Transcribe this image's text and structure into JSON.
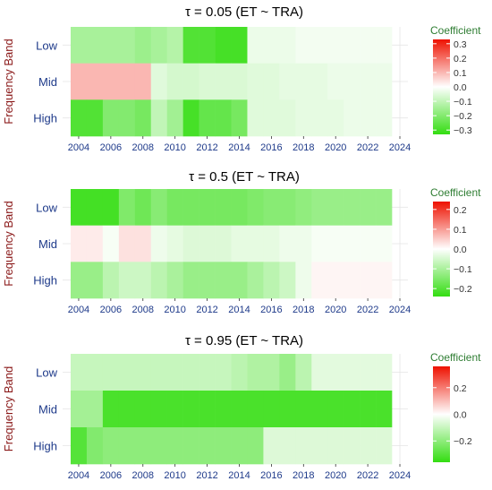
{
  "colors": {
    "negative_end": "#33dd11",
    "zero": "#ffffff",
    "positive_end": "#ee1100",
    "title": "#000000",
    "axis_label": "#8b1a1a",
    "tick_label": "#1e3a8a",
    "legend_title": "#2e7d32"
  },
  "chart_data": [
    {
      "type": "heatmap",
      "title": "τ = 0.05  (ET ~ TRA)",
      "ylabel": "Frequency Band",
      "xlabel": "",
      "legend_title": "Coefficient",
      "legend_position": "right",
      "legend_ticks": [
        "0.3",
        "0.2",
        "0.1",
        "0.0",
        "−0.1",
        "−0.2",
        "−0.3"
      ],
      "legend_tick_values": [
        0.3,
        0.2,
        0.1,
        0.0,
        -0.1,
        -0.2,
        -0.3
      ],
      "color_limits": [
        -0.33,
        0.33
      ],
      "x_ticks": [
        "2004",
        "2006",
        "2008",
        "2010",
        "2012",
        "2014",
        "2016",
        "2018",
        "2020",
        "2022",
        "2024"
      ],
      "xlim": [
        2003,
        2024.5
      ],
      "x": [
        2004,
        2005,
        2006,
        2007,
        2008,
        2009,
        2010,
        2011,
        2012,
        2013,
        2014,
        2015,
        2016,
        2017,
        2018,
        2019,
        2020,
        2021,
        2022,
        2023
      ],
      "bands": [
        "Low",
        "Mid",
        "High"
      ],
      "values": {
        "Low": [
          -0.14,
          -0.14,
          -0.14,
          -0.14,
          -0.16,
          -0.14,
          -0.12,
          -0.28,
          -0.28,
          -0.3,
          -0.3,
          -0.03,
          -0.03,
          -0.03,
          -0.02,
          -0.02,
          -0.02,
          -0.02,
          -0.02,
          -0.02
        ],
        "Mid": [
          0.1,
          0.1,
          0.1,
          0.1,
          0.1,
          -0.05,
          -0.07,
          -0.07,
          -0.06,
          -0.06,
          -0.06,
          -0.05,
          -0.05,
          -0.04,
          -0.04,
          -0.04,
          -0.03,
          -0.03,
          -0.03,
          -0.03
        ],
        "High": [
          -0.28,
          -0.28,
          -0.2,
          -0.2,
          -0.22,
          -0.1,
          -0.15,
          -0.3,
          -0.25,
          -0.25,
          -0.22,
          -0.05,
          -0.05,
          -0.05,
          -0.04,
          -0.04,
          -0.04,
          -0.03,
          -0.03,
          -0.03
        ]
      }
    },
    {
      "type": "heatmap",
      "title": "τ = 0.5  (ET ~ TRA)",
      "ylabel": "Frequency Band",
      "xlabel": "",
      "legend_title": "Coefficient",
      "legend_position": "right",
      "legend_ticks": [
        "0.2",
        "0.1",
        "0.0",
        "−0.1",
        "−0.2"
      ],
      "legend_tick_values": [
        0.2,
        0.1,
        0.0,
        -0.1,
        -0.2
      ],
      "color_limits": [
        -0.24,
        0.24
      ],
      "x_ticks": [
        "2004",
        "2006",
        "2008",
        "2010",
        "2012",
        "2014",
        "2016",
        "2018",
        "2020",
        "2022",
        "2024"
      ],
      "xlim": [
        2003,
        2024.5
      ],
      "x": [
        2004,
        2005,
        2006,
        2007,
        2008,
        2009,
        2010,
        2011,
        2012,
        2013,
        2014,
        2015,
        2016,
        2017,
        2018,
        2019,
        2020,
        2021,
        2022,
        2023
      ],
      "bands": [
        "Low",
        "Mid",
        "High"
      ],
      "values": {
        "Low": [
          -0.22,
          -0.22,
          -0.22,
          -0.15,
          -0.17,
          -0.14,
          -0.16,
          -0.16,
          -0.16,
          -0.16,
          -0.16,
          -0.15,
          -0.14,
          -0.14,
          -0.13,
          -0.12,
          -0.12,
          -0.12,
          -0.12,
          -0.12
        ],
        "Mid": [
          0.02,
          0.02,
          -0.01,
          0.03,
          0.03,
          -0.02,
          -0.03,
          -0.04,
          -0.04,
          -0.04,
          -0.03,
          -0.03,
          -0.03,
          -0.02,
          -0.02,
          -0.01,
          -0.01,
          -0.01,
          -0.01,
          -0.01
        ],
        "High": [
          -0.12,
          -0.12,
          -0.08,
          -0.06,
          -0.06,
          -0.08,
          -0.1,
          -0.12,
          -0.12,
          -0.12,
          -0.12,
          -0.1,
          -0.08,
          -0.06,
          -0.02,
          0.01,
          0.01,
          0.01,
          0.01,
          0.01
        ]
      }
    },
    {
      "type": "heatmap",
      "title": "τ = 0.95  (ET ~ TRA)",
      "ylabel": "Frequency Band",
      "xlabel": "",
      "legend_title": "Coefficient",
      "legend_position": "right",
      "legend_ticks": [
        "0.2",
        "0.0",
        "−0.2"
      ],
      "legend_tick_values": [
        0.2,
        0.0,
        -0.2
      ],
      "color_limits": [
        -0.36,
        0.36
      ],
      "x_ticks": [
        "2004",
        "2006",
        "2008",
        "2010",
        "2012",
        "2014",
        "2016",
        "2018",
        "2020",
        "2022",
        "2024"
      ],
      "xlim": [
        2003,
        2024.5
      ],
      "x": [
        2004,
        2005,
        2006,
        2007,
        2008,
        2009,
        2010,
        2011,
        2012,
        2013,
        2014,
        2015,
        2016,
        2017,
        2018,
        2019,
        2020,
        2021,
        2022,
        2023
      ],
      "bands": [
        "Low",
        "Mid",
        "High"
      ],
      "values": {
        "Low": [
          -0.1,
          -0.1,
          -0.1,
          -0.1,
          -0.1,
          -0.1,
          -0.1,
          -0.1,
          -0.1,
          -0.1,
          -0.12,
          -0.14,
          -0.14,
          -0.18,
          -0.12,
          -0.05,
          -0.05,
          -0.05,
          -0.05,
          -0.05
        ],
        "Mid": [
          -0.16,
          -0.16,
          -0.32,
          -0.32,
          -0.32,
          -0.32,
          -0.32,
          -0.32,
          -0.32,
          -0.32,
          -0.32,
          -0.32,
          -0.32,
          -0.32,
          -0.32,
          -0.32,
          -0.32,
          -0.32,
          -0.32,
          -0.32
        ],
        "High": [
          -0.3,
          -0.22,
          -0.2,
          -0.2,
          -0.2,
          -0.2,
          -0.2,
          -0.2,
          -0.2,
          -0.2,
          -0.2,
          -0.2,
          -0.06,
          -0.06,
          -0.06,
          -0.06,
          -0.06,
          -0.06,
          -0.06,
          -0.06
        ]
      }
    }
  ]
}
